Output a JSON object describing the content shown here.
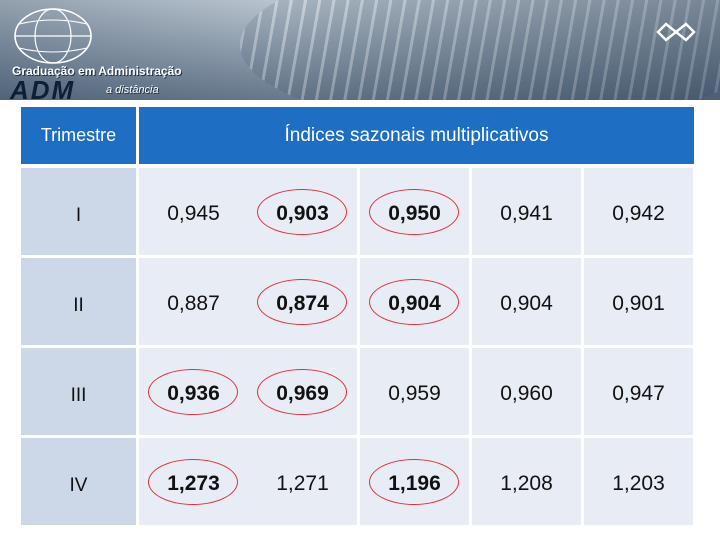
{
  "header": {
    "program_title": "Graduação em Administração",
    "wordmark": "ADM",
    "tagline": "a distância",
    "icons": [
      "globe-icon",
      "emblem-icon"
    ]
  },
  "table": {
    "header_label": "Trimestre",
    "header_title": "Índices sazonais multiplicativos",
    "rows": [
      {
        "label": "I",
        "values": [
          "0,945",
          "0,903",
          "0,950",
          "0,941",
          "0,942"
        ],
        "marked": [
          false,
          true,
          true,
          false,
          false
        ]
      },
      {
        "label": "II",
        "values": [
          "0,887",
          "0,874",
          "0,904",
          "0,904",
          "0,901"
        ],
        "marked": [
          false,
          true,
          true,
          false,
          false
        ]
      },
      {
        "label": "III",
        "values": [
          "0,936",
          "0,969",
          "0,959",
          "0,960",
          "0,947"
        ],
        "marked": [
          true,
          true,
          false,
          false,
          false
        ]
      },
      {
        "label": "IV",
        "values": [
          "1,273",
          "1,271",
          "1,196",
          "1,208",
          "1,203"
        ],
        "marked": [
          true,
          false,
          true,
          false,
          false
        ]
      }
    ],
    "colors": {
      "header": "#1e6fc4",
      "row_label": "#ccd8e8",
      "cell": "#e8edf5",
      "marker": "#e0303a"
    }
  }
}
